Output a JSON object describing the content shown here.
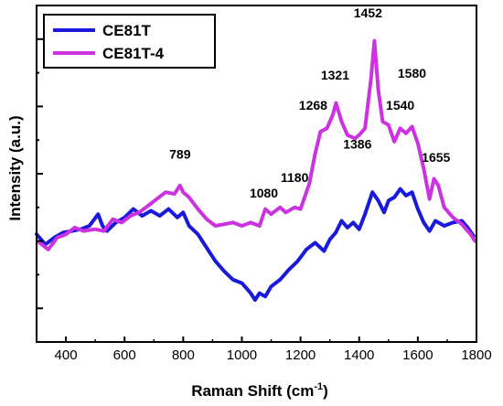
{
  "chart_data": {
    "type": "line",
    "xlabel_main": "Raman Shift (cm",
    "xlabel_sup": "-1",
    "xlabel_end": ")",
    "ylabel": "Intensity (a.u.)",
    "xlim": [
      300,
      1800
    ],
    "ylim": [
      0,
      10
    ],
    "x_ticks": [
      400,
      600,
      800,
      1000,
      1200,
      1400,
      1600,
      1800
    ],
    "y_tick_labels_visible": false,
    "legend_position": "top-left",
    "series": [
      {
        "name": "CE81T",
        "color": "#1a1adc",
        "points": [
          [
            300,
            3.2
          ],
          [
            330,
            2.9
          ],
          [
            360,
            3.1
          ],
          [
            390,
            3.25
          ],
          [
            420,
            3.3
          ],
          [
            450,
            3.35
          ],
          [
            480,
            3.45
          ],
          [
            510,
            3.8
          ],
          [
            525,
            3.45
          ],
          [
            540,
            3.3
          ],
          [
            570,
            3.55
          ],
          [
            600,
            3.7
          ],
          [
            630,
            3.95
          ],
          [
            660,
            3.75
          ],
          [
            690,
            3.9
          ],
          [
            720,
            3.75
          ],
          [
            750,
            3.95
          ],
          [
            780,
            3.7
          ],
          [
            800,
            3.85
          ],
          [
            820,
            3.45
          ],
          [
            850,
            3.2
          ],
          [
            880,
            2.8
          ],
          [
            910,
            2.4
          ],
          [
            940,
            2.1
          ],
          [
            970,
            1.85
          ],
          [
            1000,
            1.75
          ],
          [
            1030,
            1.45
          ],
          [
            1045,
            1.25
          ],
          [
            1060,
            1.45
          ],
          [
            1080,
            1.35
          ],
          [
            1100,
            1.65
          ],
          [
            1130,
            1.85
          ],
          [
            1160,
            2.15
          ],
          [
            1190,
            2.4
          ],
          [
            1220,
            2.75
          ],
          [
            1250,
            2.95
          ],
          [
            1280,
            2.7
          ],
          [
            1300,
            3.05
          ],
          [
            1320,
            3.25
          ],
          [
            1340,
            3.6
          ],
          [
            1360,
            3.4
          ],
          [
            1380,
            3.55
          ],
          [
            1400,
            3.35
          ],
          [
            1420,
            3.8
          ],
          [
            1445,
            4.45
          ],
          [
            1465,
            4.2
          ],
          [
            1485,
            3.85
          ],
          [
            1500,
            4.2
          ],
          [
            1520,
            4.3
          ],
          [
            1540,
            4.55
          ],
          [
            1560,
            4.35
          ],
          [
            1580,
            4.45
          ],
          [
            1600,
            3.95
          ],
          [
            1620,
            3.55
          ],
          [
            1640,
            3.3
          ],
          [
            1660,
            3.6
          ],
          [
            1690,
            3.45
          ],
          [
            1720,
            3.55
          ],
          [
            1750,
            3.6
          ],
          [
            1770,
            3.4
          ],
          [
            1790,
            3.15
          ]
        ]
      },
      {
        "name": "CE81T-4",
        "color": "#cc33e0",
        "points": [
          [
            310,
            2.95
          ],
          [
            340,
            2.75
          ],
          [
            370,
            3.1
          ],
          [
            400,
            3.2
          ],
          [
            430,
            3.4
          ],
          [
            460,
            3.3
          ],
          [
            500,
            3.35
          ],
          [
            530,
            3.3
          ],
          [
            560,
            3.65
          ],
          [
            590,
            3.55
          ],
          [
            620,
            3.75
          ],
          [
            650,
            3.85
          ],
          [
            680,
            4.05
          ],
          [
            710,
            4.25
          ],
          [
            740,
            4.45
          ],
          [
            770,
            4.4
          ],
          [
            789,
            4.65
          ],
          [
            800,
            4.45
          ],
          [
            820,
            4.3
          ],
          [
            850,
            3.95
          ],
          [
            880,
            3.65
          ],
          [
            910,
            3.45
          ],
          [
            940,
            3.5
          ],
          [
            970,
            3.55
          ],
          [
            1000,
            3.45
          ],
          [
            1030,
            3.55
          ],
          [
            1060,
            3.45
          ],
          [
            1080,
            3.95
          ],
          [
            1100,
            3.8
          ],
          [
            1130,
            4.0
          ],
          [
            1150,
            3.85
          ],
          [
            1180,
            4.0
          ],
          [
            1200,
            3.95
          ],
          [
            1230,
            4.7
          ],
          [
            1250,
            5.6
          ],
          [
            1268,
            6.25
          ],
          [
            1290,
            6.35
          ],
          [
            1310,
            6.75
          ],
          [
            1321,
            7.1
          ],
          [
            1340,
            6.55
          ],
          [
            1360,
            6.15
          ],
          [
            1386,
            6.05
          ],
          [
            1400,
            6.15
          ],
          [
            1420,
            6.35
          ],
          [
            1440,
            7.8
          ],
          [
            1452,
            8.95
          ],
          [
            1465,
            7.5
          ],
          [
            1480,
            6.55
          ],
          [
            1500,
            6.45
          ],
          [
            1520,
            5.95
          ],
          [
            1540,
            6.35
          ],
          [
            1560,
            6.2
          ],
          [
            1580,
            6.4
          ],
          [
            1600,
            5.9
          ],
          [
            1620,
            5.15
          ],
          [
            1640,
            4.25
          ],
          [
            1655,
            4.85
          ],
          [
            1670,
            4.65
          ],
          [
            1690,
            4.0
          ],
          [
            1720,
            3.7
          ],
          [
            1750,
            3.5
          ],
          [
            1780,
            3.2
          ],
          [
            1795,
            3.0
          ]
        ]
      }
    ],
    "peak_labels": [
      {
        "text": "789",
        "x": 789,
        "y": 5.45
      },
      {
        "text": "1080",
        "x": 1075,
        "y": 4.3
      },
      {
        "text": "1180",
        "x": 1180,
        "y": 4.75
      },
      {
        "text": "1268",
        "x": 1243,
        "y": 6.9
      },
      {
        "text": "1321",
        "x": 1318,
        "y": 7.8
      },
      {
        "text": "1386",
        "x": 1394,
        "y": 5.75
      },
      {
        "text": "1452",
        "x": 1430,
        "y": 9.65
      },
      {
        "text": "1540",
        "x": 1540,
        "y": 6.9
      },
      {
        "text": "1580",
        "x": 1580,
        "y": 7.85
      },
      {
        "text": "1655",
        "x": 1662,
        "y": 5.35
      }
    ]
  }
}
